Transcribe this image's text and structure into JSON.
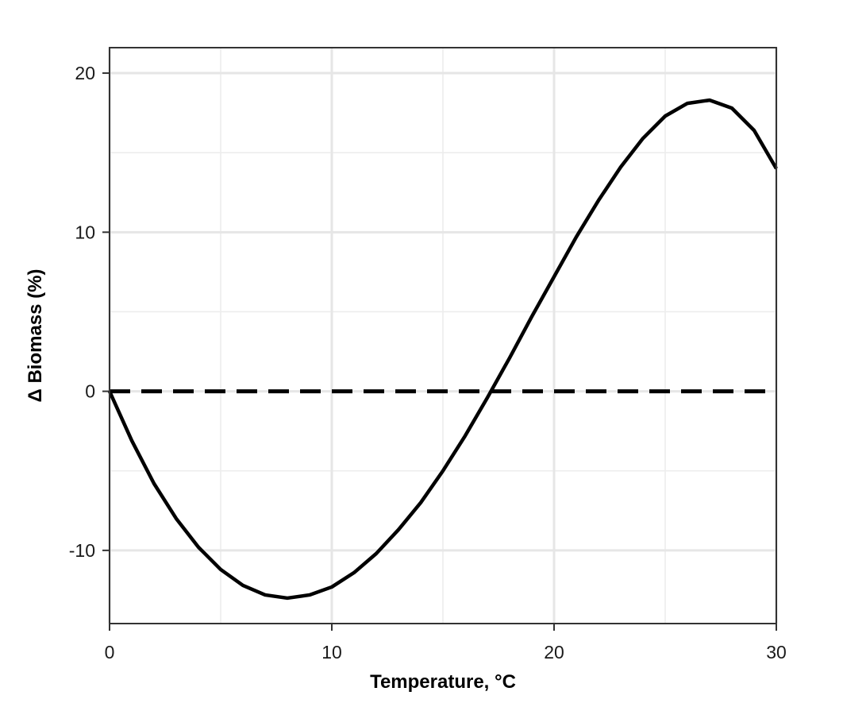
{
  "chart_data": {
    "type": "line",
    "xlabel": "Temperature, °C",
    "ylabel": "Δ Biomass (%)",
    "xlim": [
      0,
      30
    ],
    "ylim": [
      -14.6,
      21.6
    ],
    "x_ticks": [
      0,
      10,
      20,
      30
    ],
    "x_tick_labels": [
      "0",
      "10",
      "20",
      "30"
    ],
    "y_ticks": [
      -10,
      0,
      10,
      20
    ],
    "y_tick_labels": [
      "-10",
      "0",
      "10",
      "20"
    ],
    "x_minor_ticks": [
      5,
      15,
      25
    ],
    "y_minor_ticks": [
      -5,
      5,
      15
    ],
    "grid": true,
    "reference_line": {
      "y": 0,
      "x_range": [
        0,
        30
      ],
      "style": "dashed"
    },
    "series": [
      {
        "x": [
          0,
          1,
          2,
          3,
          4,
          5,
          6,
          7,
          8,
          9,
          10,
          11,
          12,
          13,
          14,
          15,
          16,
          17,
          18,
          19,
          20,
          21,
          22,
          23,
          24,
          25,
          26,
          27,
          28,
          29,
          30
        ],
        "values": [
          0,
          -3.1,
          -5.8,
          -8.0,
          -9.8,
          -11.2,
          -12.2,
          -12.8,
          -13.0,
          -12.8,
          -12.3,
          -11.4,
          -10.2,
          -8.7,
          -7.0,
          -5.0,
          -2.8,
          -0.4,
          2.1,
          4.7,
          7.2,
          9.7,
          12.0,
          14.1,
          15.9,
          17.3,
          18.1,
          18.3,
          17.8,
          16.4,
          14.0
        ],
        "color": "#000000"
      }
    ]
  }
}
